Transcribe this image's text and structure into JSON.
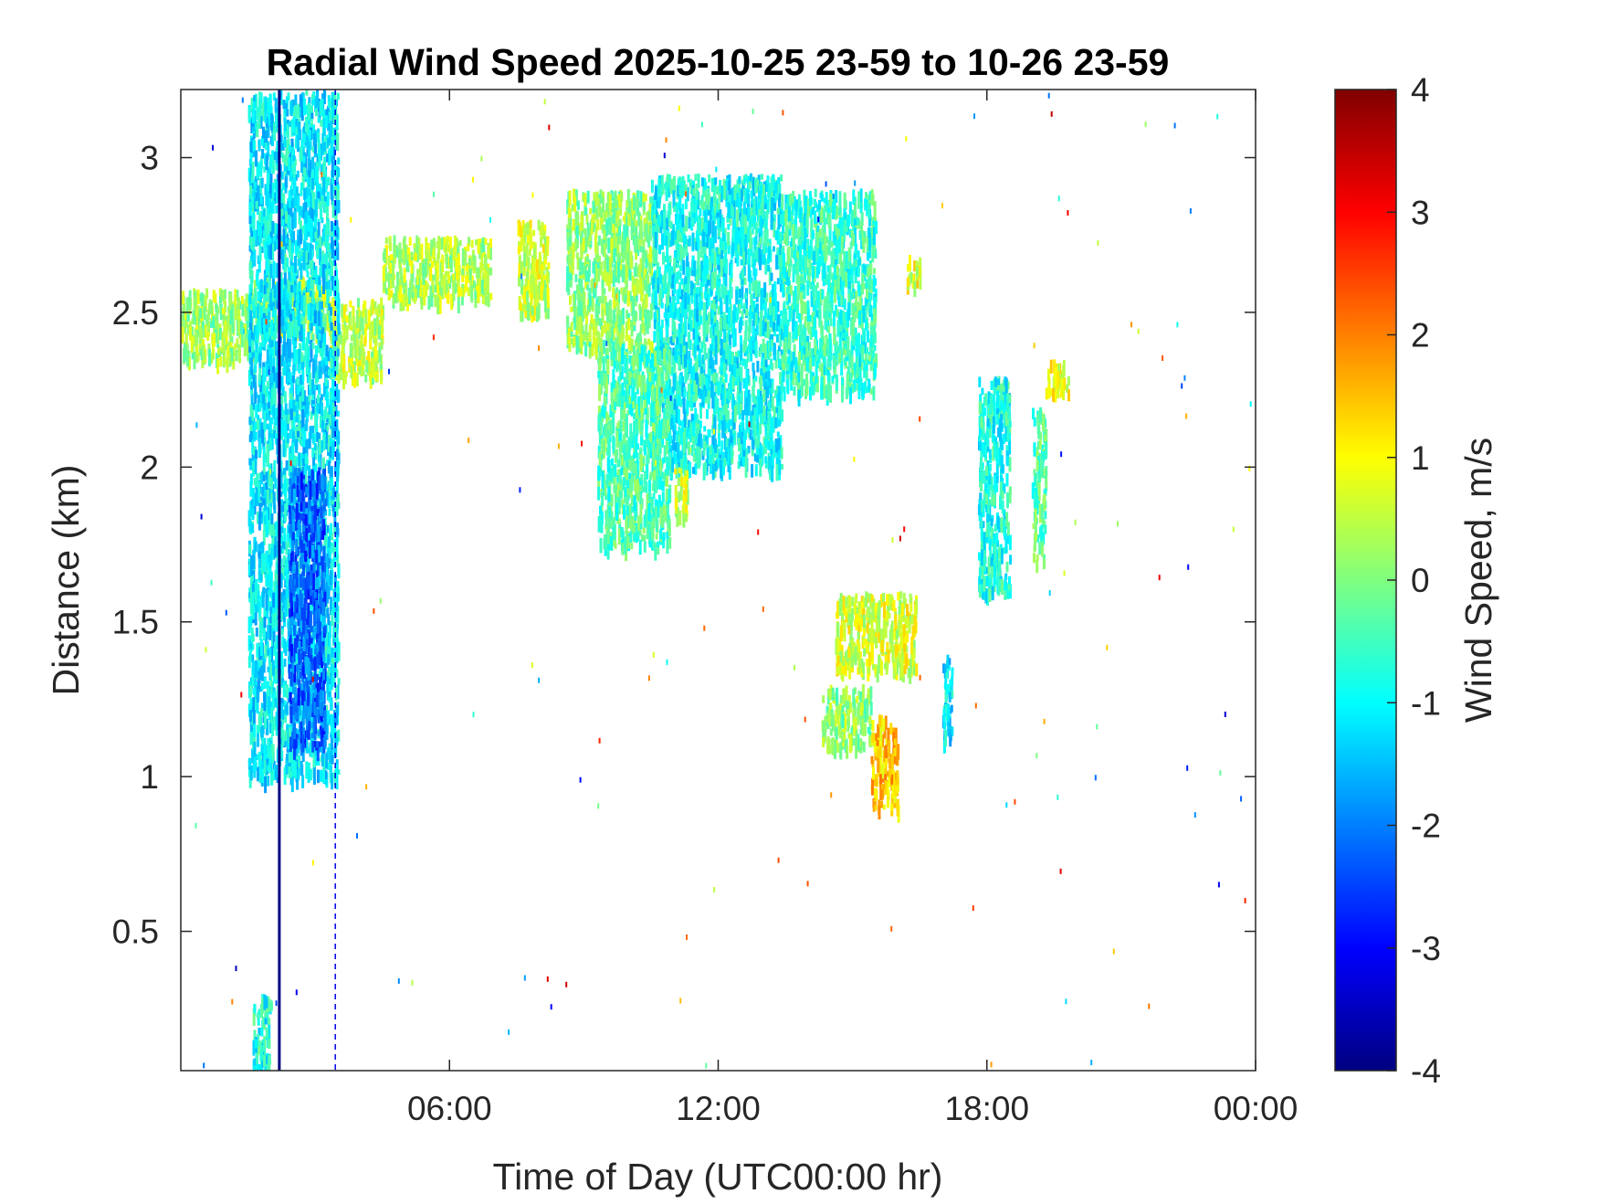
{
  "chart_data": {
    "type": "heatmap",
    "title": "Radial Wind Speed 2025-10-25 23-59 to 10-26 23-59",
    "xlabel": "Time of Day (UTC00:00 hr)",
    "ylabel": "Distance (km)",
    "colorbar_label": "Wind Speed, m/s",
    "x_unit": "hours",
    "xlim": [
      0,
      24
    ],
    "ylim": [
      0.05,
      3.22
    ],
    "clim": [
      -4,
      4
    ],
    "colormap": "jet",
    "grid": false,
    "x_ticks": [
      {
        "value": 6,
        "label": "06:00"
      },
      {
        "value": 12,
        "label": "12:00"
      },
      {
        "value": 18,
        "label": "18:00"
      },
      {
        "value": 24,
        "label": "00:00"
      }
    ],
    "y_ticks": [
      {
        "value": 0.5,
        "label": "0.5"
      },
      {
        "value": 1,
        "label": "1"
      },
      {
        "value": 1.5,
        "label": "1.5"
      },
      {
        "value": 2,
        "label": "2"
      },
      {
        "value": 2.5,
        "label": "2.5"
      },
      {
        "value": 3,
        "label": "3"
      }
    ],
    "c_ticks": [
      {
        "value": 4,
        "label": "4"
      },
      {
        "value": 3,
        "label": "3"
      },
      {
        "value": 2,
        "label": "2"
      },
      {
        "value": 1,
        "label": "1"
      },
      {
        "value": 0,
        "label": "0"
      },
      {
        "value": -1,
        "label": "-1"
      },
      {
        "value": -2,
        "label": "-2"
      },
      {
        "value": -3,
        "label": "-3"
      },
      {
        "value": -4,
        "label": "-4"
      }
    ],
    "regions": [
      {
        "x": [
          0,
          1.6
        ],
        "y": [
          2.35,
          2.58
        ],
        "v": 0.2
      },
      {
        "x": [
          1.6,
          3.3
        ],
        "y": [
          2.45,
          2.62
        ],
        "v": 0.3
      },
      {
        "x": [
          3.3,
          4.5
        ],
        "y": [
          2.3,
          2.55
        ],
        "v": 0.5
      },
      {
        "x": [
          4.5,
          6.9
        ],
        "y": [
          2.55,
          2.75
        ],
        "v": 0.4
      },
      {
        "x": [
          7.5,
          8.2
        ],
        "y": [
          2.5,
          2.8
        ],
        "v": 0.6
      },
      {
        "x": [
          8.6,
          10.5
        ],
        "y": [
          2.4,
          2.9
        ],
        "v": 0.1
      },
      {
        "x": [
          10.5,
          13.4
        ],
        "y": [
          2.0,
          2.95
        ],
        "v": -0.9
      },
      {
        "x": [
          13.4,
          15.5
        ],
        "y": [
          2.25,
          2.9
        ],
        "v": -0.6
      },
      {
        "x": [
          9.3,
          10.9
        ],
        "y": [
          1.75,
          2.4
        ],
        "v": -0.4
      },
      {
        "x": [
          11.0,
          11.3
        ],
        "y": [
          1.85,
          2.0
        ],
        "v": 0.6
      },
      {
        "x": [
          14.6,
          16.4
        ],
        "y": [
          1.35,
          1.6
        ],
        "v": 0.7
      },
      {
        "x": [
          14.3,
          15.4
        ],
        "y": [
          1.1,
          1.3
        ],
        "v": 0.1
      },
      {
        "x": [
          15.4,
          16.0
        ],
        "y": [
          0.9,
          1.2
        ],
        "v": 1.4
      },
      {
        "x": [
          17.0,
          17.2
        ],
        "y": [
          1.1,
          1.4
        ],
        "v": -1.2
      },
      {
        "x": [
          17.8,
          18.5
        ],
        "y": [
          1.6,
          2.3
        ],
        "v": -0.8
      },
      {
        "x": [
          19.0,
          19.3
        ],
        "y": [
          1.7,
          2.2
        ],
        "v": -0.3
      },
      {
        "x": [
          19.3,
          19.8
        ],
        "y": [
          2.25,
          2.35
        ],
        "v": 0.8
      },
      {
        "x": [
          16.2,
          16.5
        ],
        "y": [
          2.6,
          2.7
        ],
        "v": 0.8
      },
      {
        "x": [
          1.5,
          3.5
        ],
        "y": [
          1.0,
          3.22
        ],
        "v": -1.1
      },
      {
        "x": [
          2.4,
          3.2
        ],
        "y": [
          1.1,
          2.0
        ],
        "v": -2.2
      },
      {
        "x": [
          1.6,
          2.0
        ],
        "y": [
          0.05,
          0.3
        ],
        "v": -0.8
      }
    ],
    "vertical_lines": [
      {
        "x": 2.2,
        "v": -4.0
      },
      {
        "x": 3.45,
        "v": -3.2
      }
    ]
  }
}
